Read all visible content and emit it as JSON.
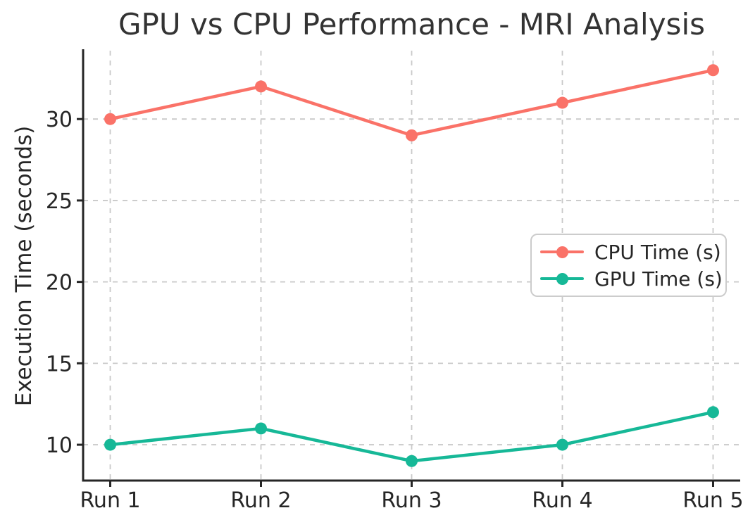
{
  "chart_data": {
    "type": "line",
    "title": "GPU vs CPU Performance - MRI Analysis",
    "categories": [
      "Run 1",
      "Run 2",
      "Run 3",
      "Run 4",
      "Run 5"
    ],
    "series": [
      {
        "name": "CPU Time (s)",
        "values": [
          30,
          32,
          29,
          31,
          33
        ],
        "color": "#fa7268"
      },
      {
        "name": "GPU Time (s)",
        "values": [
          10,
          11,
          9,
          10,
          12
        ],
        "color": "#16b897"
      }
    ],
    "xlabel": "",
    "ylabel": "Execution Time (seconds)",
    "yticks": [
      10,
      15,
      20,
      25,
      30
    ],
    "ylim": [
      7.8,
      34.2
    ],
    "xlim": [
      -0.18,
      4.18
    ],
    "grid": true,
    "grid_style": "dashed",
    "legend_position": "center-right",
    "marker": "circle",
    "colors": {
      "background": "#ffffff",
      "axis": "#262626",
      "grid": "#c9c9c9",
      "title_text": "#333333",
      "tick_text": "#262626",
      "legend_border": "#cccccc"
    }
  }
}
